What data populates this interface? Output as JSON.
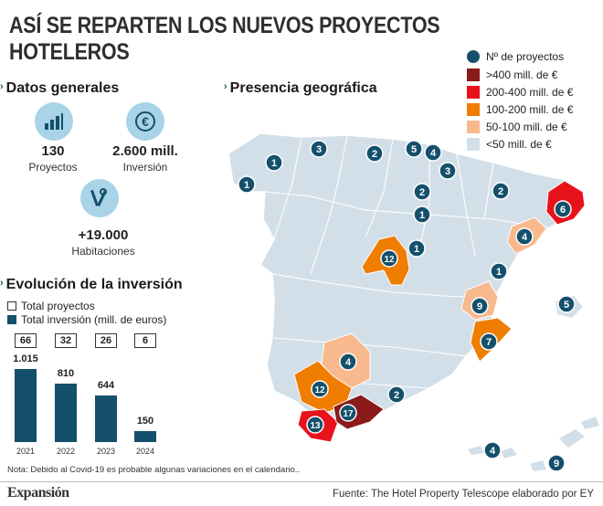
{
  "title": "ASÍ SE REPARTEN LOS NUEVOS PROYECTOS HOTELEROS",
  "general": {
    "heading": "Datos generales",
    "projects_value": "130",
    "projects_label": "Proyectos",
    "investment_value": "2.600 mill.",
    "investment_label": "Inversión",
    "rooms_value": "+19.000",
    "rooms_label": "Habitaciones",
    "icons": [
      "bar-chart-icon",
      "euro-icon",
      "tools-icon"
    ]
  },
  "map": {
    "heading": "Presencia geográfica",
    "legend": {
      "markers_label": "Nº de proyectos",
      "bands": [
        {
          "label": ">400 mill. de €",
          "color": "#8b1a1a"
        },
        {
          "label": "200-400 mill. de €",
          "color": "#e8121b"
        },
        {
          "label": "100-200 mill. de €",
          "color": "#ef7d00"
        },
        {
          "label": "50-100 mill. de €",
          "color": "#f8b98e"
        },
        {
          "label": "<50 mill. de €",
          "color": "#d3dfe8"
        }
      ],
      "marker_color": "#14506b"
    },
    "markers": [
      "1",
      "3",
      "2",
      "5",
      "4",
      "3",
      "1",
      "2",
      "2",
      "1",
      "6",
      "4",
      "1",
      "1",
      "12",
      "9",
      "5",
      "7",
      "4",
      "12",
      "2",
      "17",
      "13",
      "4",
      "9"
    ]
  },
  "investment": {
    "heading": "Evolución de la inversión",
    "legend_projects": "Total proyectos",
    "legend_investment": "Total inversión (mill. de euros)"
  },
  "chart_data": {
    "type": "bar",
    "categories": [
      "2021",
      "2022",
      "2023",
      "2024"
    ],
    "series": [
      {
        "name": "Total inversión (mill. de euros)",
        "values": [
          1015,
          810,
          644,
          150
        ],
        "labels": [
          "1.015",
          "810",
          "644",
          "150"
        ]
      },
      {
        "name": "Total proyectos",
        "values": [
          66,
          32,
          26,
          6
        ]
      }
    ],
    "title": "Evolución de la inversión"
  },
  "note": "Nota: Debido al Covid-19 es probable algunas variaciones en el calendario..",
  "footer": {
    "brand": "Expansión",
    "source": "Fuente: The Hotel Property Telescope elaborado por EY"
  }
}
